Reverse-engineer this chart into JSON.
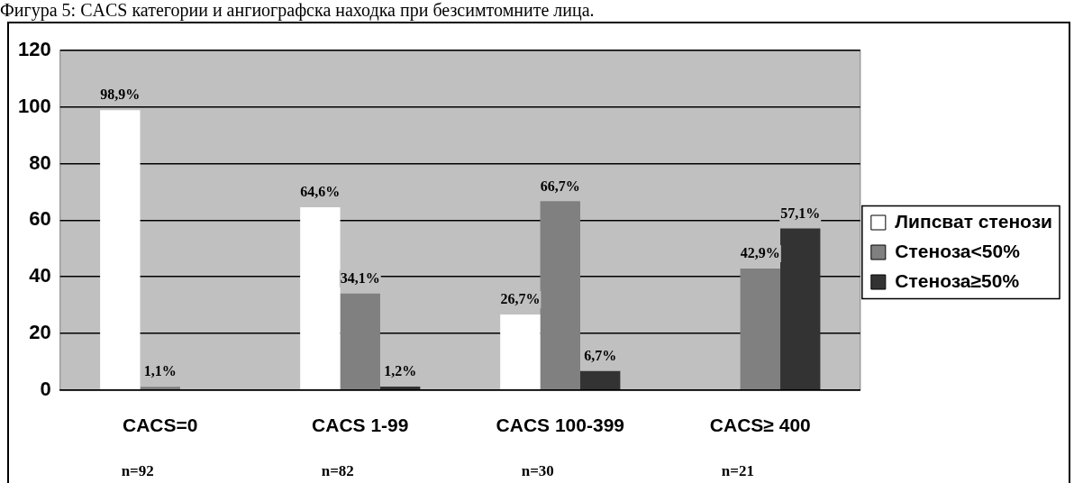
{
  "chart_data": {
    "type": "bar",
    "title": "Фигура 5: CACS категории и ангиографска находка при безсимтомните лица.",
    "categories": [
      "CACS=0",
      "CACS 1-99",
      "CACS 100-399",
      "CACS≥ 400"
    ],
    "series": [
      {
        "name": "Липсват стенози",
        "color": "#ffffff",
        "values": [
          98.9,
          64.6,
          26.7,
          null
        ],
        "value_labels": [
          "98,9%",
          "64,6%",
          "26,7%",
          null
        ]
      },
      {
        "name": "Стеноза<50%",
        "color": "#808080",
        "values": [
          1.1,
          34.1,
          66.7,
          42.9
        ],
        "value_labels": [
          "1,1%",
          "34,1%",
          "66,7%",
          "42,9%"
        ]
      },
      {
        "name": "Стеноза≥50%",
        "color": "#333333",
        "values": [
          null,
          1.2,
          6.7,
          57.1
        ],
        "value_labels": [
          null,
          "1,2%",
          "6,7%",
          "57,1%"
        ]
      }
    ],
    "ylim": [
      0,
      120
    ],
    "yticks": [
      0,
      20,
      40,
      60,
      80,
      100,
      120
    ],
    "grid": "y",
    "legend": "right",
    "annotations": [
      "n=92",
      "n=82",
      "n=30",
      "n=21"
    ]
  }
}
